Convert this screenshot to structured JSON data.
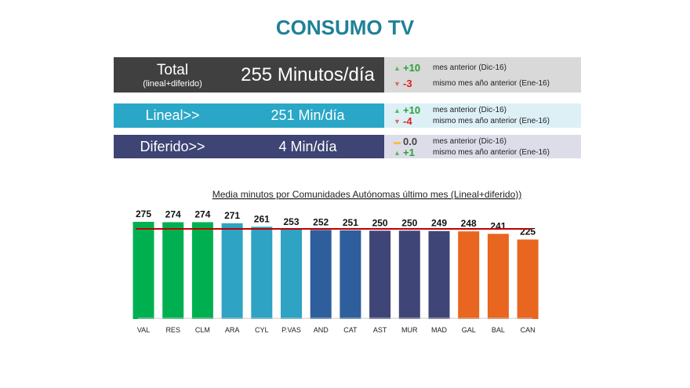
{
  "title": "CONSUMO TV",
  "rows": [
    {
      "label": "Total",
      "sublabel": "(lineal+diferido)",
      "value": "255 Minutos/día",
      "bg": "#404040",
      "side_bg": "#d9d9d9",
      "changes": [
        {
          "icon": "triangle-up-icon",
          "delta": "+10",
          "text": "mes anterior (Dic-16)"
        },
        {
          "icon": "triangle-down-icon",
          "delta": "-3",
          "text": "mismo mes año anterior (Ene-16)"
        }
      ]
    },
    {
      "label": "Lineal>>",
      "value": "251 Min/día",
      "bg": "#2aa7c7",
      "side_bg": "#dcf0f6",
      "changes": [
        {
          "icon": "triangle-up-icon",
          "delta": "+10",
          "text": "mes anterior (Dic-16)"
        },
        {
          "icon": "triangle-down-icon",
          "delta": "-4",
          "text": "mismo mes año anterior (Ene-16)"
        }
      ]
    },
    {
      "label": "Diferido>>",
      "value": "4 Min/día",
      "bg": "#3e4474",
      "side_bg": "#dddde9",
      "changes": [
        {
          "icon": "dash-icon",
          "delta": "0.0",
          "text": "mes anterior (Dic-16)"
        },
        {
          "icon": "triangle-up-icon",
          "delta": "+1",
          "text": "mismo mes año anterior (Ene-16)"
        }
      ]
    }
  ],
  "chart_data": {
    "type": "bar",
    "title": "Media minutos por Comunidades Autónomas último mes (Lineal+diferido))",
    "categories": [
      "VAL",
      "RES",
      "CLM",
      "ARA",
      "CYL",
      "P.VAS",
      "AND",
      "CAT",
      "AST",
      "MUR",
      "MAD",
      "GAL",
      "BAL",
      "CAN"
    ],
    "values": [
      275,
      274,
      274,
      271,
      261,
      253,
      252,
      251,
      250,
      250,
      249,
      248,
      241,
      225
    ],
    "colors": [
      "#00b050",
      "#00b050",
      "#00b050",
      "#2ea3c3",
      "#2ea3c3",
      "#2ea3c3",
      "#2f5e9c",
      "#2f5e9c",
      "#3f4677",
      "#3f4677",
      "#3f4677",
      "#e8661f",
      "#e8661f",
      "#e8661f"
    ],
    "reference_line": {
      "value": 255,
      "color": "#c00000"
    },
    "ylim": [
      0,
      280
    ],
    "grid": false
  }
}
